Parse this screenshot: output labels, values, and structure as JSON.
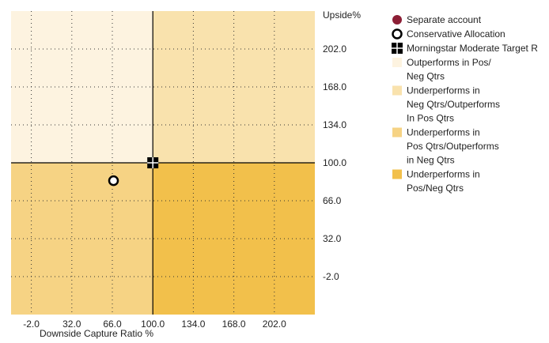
{
  "chart_data": {
    "type": "scatter",
    "xlabel": "Downside Capture Ratio %",
    "ylabel": "Upside%",
    "x_ticks": [
      "-2.0",
      "32.0",
      "66.0",
      "100.0",
      "134.0",
      "168.0",
      "202.0"
    ],
    "y_ticks": [
      "202.0",
      "168.0",
      "134.0",
      "100.0",
      "66.0",
      "32.0",
      "-2.0"
    ],
    "xlim": [
      -19,
      236
    ],
    "ylim": [
      -36,
      236
    ],
    "grid": true,
    "legend_position": "right",
    "quadrants": [
      {
        "label": "Outperforms in Pos/ Neg Qtrs",
        "color": "#fdf3e0"
      },
      {
        "label": "Underperforms in Neg Qtrs/Outperforms In Pos Qtrs",
        "color": "#f9e2ad"
      },
      {
        "label": "Underperforms in Pos Qtrs/Outperforms in Neg Qtrs",
        "color": "#f6d384"
      },
      {
        "label": "Underperforms in Pos/Neg Qtrs",
        "color": "#f2c04b"
      }
    ],
    "series": [
      {
        "name": "Separate account",
        "marker": "filled-circle",
        "color": "#8c1e35",
        "points": []
      },
      {
        "name": "Conservative Allocation",
        "marker": "open-circle",
        "color": "#000000",
        "points": [
          {
            "x": 67,
            "y": 84
          }
        ]
      },
      {
        "name": "Morningstar Moderate Target R",
        "marker": "quad-square",
        "color": "#000000",
        "points": [
          {
            "x": 100,
            "y": 100
          }
        ]
      }
    ]
  }
}
